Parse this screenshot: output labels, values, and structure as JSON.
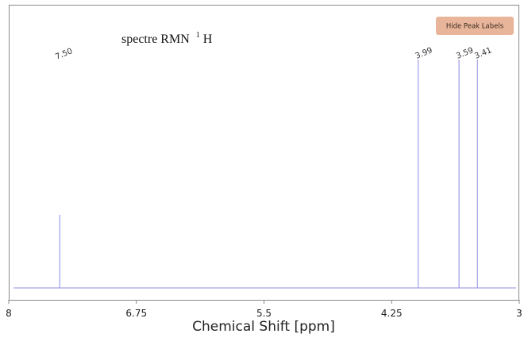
{
  "chart_data": {
    "type": "line",
    "title": "spectre RMN",
    "title_superscript": "1",
    "title_suffix": "H",
    "xlabel": "Chemical Shift [ppm]",
    "ylabel": "",
    "xlim": [
      8,
      3
    ],
    "ylim": [
      0,
      1
    ],
    "x_ticks": [
      "8",
      "6.75",
      "5.5",
      "4.25",
      "3"
    ],
    "peaks": [
      {
        "shift": 7.5,
        "label": "7.50",
        "height": 0.32
      },
      {
        "shift": 3.99,
        "label": "3.99",
        "height": 1.0
      },
      {
        "shift": 3.59,
        "label": "3.59",
        "height": 1.0
      },
      {
        "shift": 3.41,
        "label": "3.41",
        "height": 1.0
      }
    ],
    "baseline_color": "#b4b4ec",
    "peak_color": "#9d9de8",
    "grid": false
  },
  "toolbar": {
    "hide_peak_labels": "Hide Peak Labels",
    "button_color": "#e8b59a"
  }
}
